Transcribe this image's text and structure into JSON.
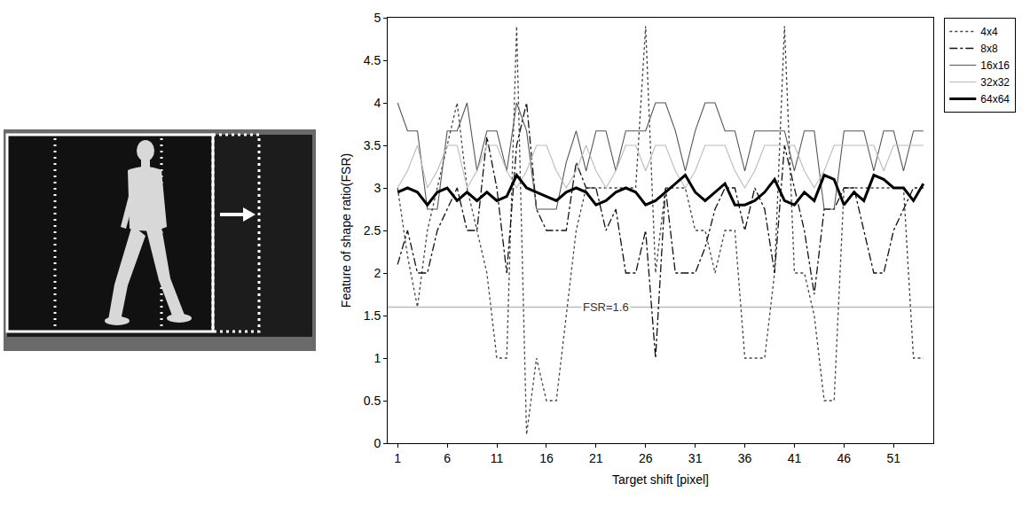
{
  "chart_data": {
    "type": "line",
    "x_label": "Target shift [pixel]",
    "y_label": "Feature of shape ratio(FSR)",
    "x": [
      1,
      2,
      3,
      4,
      5,
      6,
      7,
      8,
      9,
      10,
      11,
      12,
      13,
      14,
      15,
      16,
      17,
      18,
      19,
      20,
      21,
      22,
      23,
      24,
      25,
      26,
      27,
      28,
      29,
      30,
      31,
      32,
      33,
      34,
      35,
      36,
      37,
      38,
      39,
      40,
      41,
      42,
      43,
      44,
      45,
      46,
      47,
      48,
      49,
      50,
      51,
      52,
      53,
      54
    ],
    "series": [
      {
        "name": "4x4",
        "color": "#444444",
        "line_style": "dot",
        "values": [
          3.0,
          2.2,
          1.6,
          2.5,
          3.0,
          3.5,
          4.0,
          3.0,
          2.5,
          2.0,
          1.0,
          1.0,
          4.9,
          0.1,
          1.0,
          0.5,
          0.5,
          1.5,
          2.5,
          3.0,
          3.0,
          3.0,
          3.0,
          3.0,
          3.0,
          4.9,
          2.0,
          3.0,
          3.0,
          3.0,
          2.5,
          2.5,
          2.0,
          2.5,
          2.5,
          1.0,
          1.0,
          1.0,
          2.0,
          4.9,
          2.0,
          2.0,
          1.5,
          0.5,
          0.5,
          3.0,
          3.0,
          3.0,
          3.0,
          3.0,
          3.0,
          3.0,
          1.0,
          1.0
        ]
      },
      {
        "name": "8x8",
        "color": "#111111",
        "line_style": "dashdot",
        "values": [
          2.1,
          2.5,
          2.0,
          2.0,
          2.5,
          2.75,
          3.0,
          2.5,
          2.5,
          3.6,
          3.0,
          2.0,
          3.5,
          4.0,
          2.75,
          2.5,
          2.5,
          2.5,
          3.3,
          3.0,
          3.0,
          2.5,
          2.75,
          2.0,
          2.0,
          2.5,
          1.0,
          3.0,
          2.0,
          2.0,
          2.0,
          2.3,
          2.75,
          3.0,
          3.0,
          2.5,
          3.0,
          2.75,
          2.0,
          3.5,
          3.0,
          2.5,
          1.75,
          2.75,
          2.75,
          3.0,
          3.0,
          2.5,
          2.0,
          2.0,
          2.5,
          2.75,
          3.0,
          3.0
        ]
      },
      {
        "name": "16x16",
        "color": "#555555",
        "line_style": "solid",
        "values": [
          4.0,
          3.67,
          3.67,
          2.75,
          2.75,
          3.67,
          3.67,
          4.0,
          3.2,
          3.67,
          3.67,
          3.2,
          4.0,
          3.67,
          2.75,
          2.75,
          2.75,
          3.3,
          3.67,
          3.2,
          3.67,
          3.67,
          3.2,
          3.67,
          3.67,
          3.67,
          4.0,
          4.0,
          3.67,
          3.2,
          3.67,
          4.0,
          4.0,
          3.67,
          3.67,
          3.2,
          3.67,
          3.67,
          3.67,
          3.67,
          3.2,
          3.67,
          3.67,
          2.75,
          2.75,
          3.67,
          3.67,
          3.67,
          3.2,
          3.67,
          3.67,
          3.2,
          3.67,
          3.67
        ]
      },
      {
        "name": "32x32",
        "color": "#bbbbbb",
        "line_style": "solid",
        "values": [
          3.0,
          3.2,
          3.5,
          3.0,
          3.2,
          3.5,
          3.5,
          3.0,
          3.2,
          3.5,
          3.5,
          3.2,
          3.0,
          3.2,
          3.5,
          3.5,
          3.2,
          3.0,
          3.2,
          3.5,
          3.2,
          3.0,
          3.2,
          3.5,
          3.5,
          3.2,
          3.5,
          3.5,
          3.2,
          3.0,
          3.2,
          3.5,
          3.5,
          3.5,
          3.2,
          3.0,
          3.2,
          3.5,
          3.5,
          3.5,
          3.5,
          3.2,
          3.0,
          3.2,
          3.5,
          3.5,
          3.5,
          3.5,
          3.5,
          3.2,
          3.5,
          3.5,
          3.5,
          3.5
        ]
      },
      {
        "name": "64x64",
        "color": "#000000",
        "line_style": "solid",
        "values": [
          2.95,
          3.0,
          2.95,
          2.8,
          2.95,
          3.0,
          2.85,
          2.95,
          2.85,
          2.95,
          2.85,
          2.9,
          3.15,
          3.0,
          2.95,
          2.9,
          2.85,
          2.95,
          3.0,
          2.95,
          2.8,
          2.85,
          2.95,
          3.0,
          2.95,
          2.8,
          2.85,
          2.95,
          3.05,
          3.15,
          2.95,
          2.85,
          2.95,
          3.05,
          2.8,
          2.8,
          2.85,
          2.95,
          3.1,
          2.85,
          2.8,
          2.95,
          2.85,
          3.15,
          3.1,
          2.8,
          2.95,
          2.85,
          3.15,
          3.1,
          3.0,
          3.0,
          2.85,
          3.05
        ]
      }
    ],
    "reference_lines": [
      {
        "value": 1.6,
        "label": "FSR=1.6",
        "color": "#bbbbbb"
      }
    ],
    "xlim": [
      0,
      55
    ],
    "xticks": [
      1,
      6,
      11,
      16,
      21,
      26,
      31,
      36,
      41,
      46,
      51
    ],
    "ylim": [
      0,
      5
    ],
    "yticks": [
      0,
      0.5,
      1,
      1.5,
      2,
      2.5,
      3,
      3.5,
      4,
      4.5,
      5
    ],
    "grid": false,
    "legend": "right"
  }
}
